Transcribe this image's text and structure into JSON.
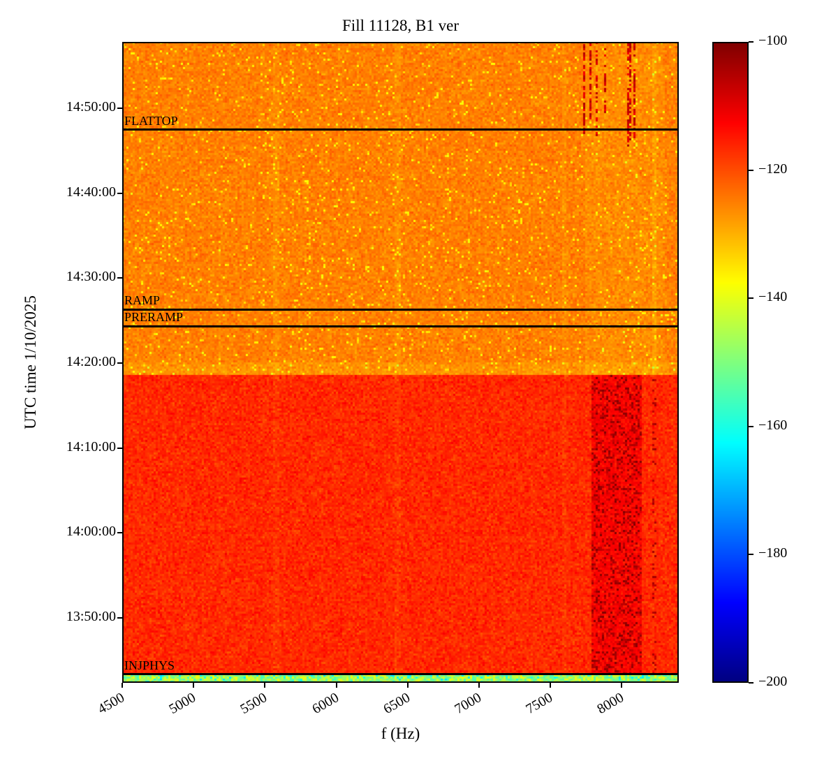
{
  "chart_data": {
    "type": "heatmap",
    "title": "Fill 11128, B1 ver",
    "xlabel": "f (Hz)",
    "ylabel": "UTC time 1/10/2025",
    "colormap": "jet",
    "legend_position": "colorbar-right",
    "freq_range": [
      4500,
      8400
    ],
    "x_ticks": [
      4500,
      5000,
      5500,
      6000,
      6500,
      7000,
      7500,
      8000
    ],
    "time_range": [
      "13:42:20",
      "14:57:50"
    ],
    "y_ticks": [
      "13:50:00",
      "14:00:00",
      "14:10:00",
      "14:20:00",
      "14:30:00",
      "14:40:00",
      "14:50:00"
    ],
    "colorbar": {
      "range_db": [
        -200,
        -100
      ],
      "ticks": [
        -100,
        -120,
        -140,
        -160,
        -180,
        -200
      ]
    },
    "annotations": [
      {
        "label": "FLATTOP",
        "time": "14:47:30"
      },
      {
        "label": "RAMP",
        "time": "14:26:20"
      },
      {
        "label": "PRERAMP",
        "time": "14:24:20"
      },
      {
        "label": "INJPHYS",
        "time": "13:43:20"
      }
    ],
    "regions": [
      {
        "name": "injection-stripe",
        "t_min": "13:42:20",
        "t_max": "13:43:20",
        "mean_db": -146,
        "noise_db": 9
      },
      {
        "name": "injection-plateau",
        "t_min": "13:43:20",
        "t_max": "14:18:30",
        "mean_db": -116.5,
        "noise_db": 5.5
      },
      {
        "name": "preramp-to-flattop",
        "t_min": "14:18:30",
        "t_max": "14:57:50",
        "mean_db": -125,
        "noise_db": 5
      }
    ],
    "dark_band": {
      "f_min": 7790,
      "f_max": 8145,
      "speckle_db": -104,
      "base_db": -112.5,
      "t_max": "14:18:30"
    },
    "dark_column": {
      "f": 8235,
      "halfwidth": 14,
      "db": -109
    },
    "faint_columns": [
      {
        "f": 6430,
        "halfwidth": 20
      },
      {
        "f": 5580,
        "halfwidth": 16
      },
      {
        "f": 7600,
        "halfwidth": 18
      }
    ],
    "vertical_streaks": [
      {
        "f": 7735,
        "halfwidth": 8,
        "t_from": "14:47:00"
      },
      {
        "f": 7778,
        "halfwidth": 8,
        "t_from": "14:48:30"
      },
      {
        "f": 7828,
        "halfwidth": 8,
        "t_from": "14:46:30"
      },
      {
        "f": 7885,
        "halfwidth": 8,
        "t_from": "14:49:00"
      },
      {
        "f": 8052,
        "halfwidth": 8,
        "t_from": "14:45:30"
      },
      {
        "f": 8092,
        "halfwidth": 8,
        "t_from": "14:46:30"
      }
    ]
  }
}
